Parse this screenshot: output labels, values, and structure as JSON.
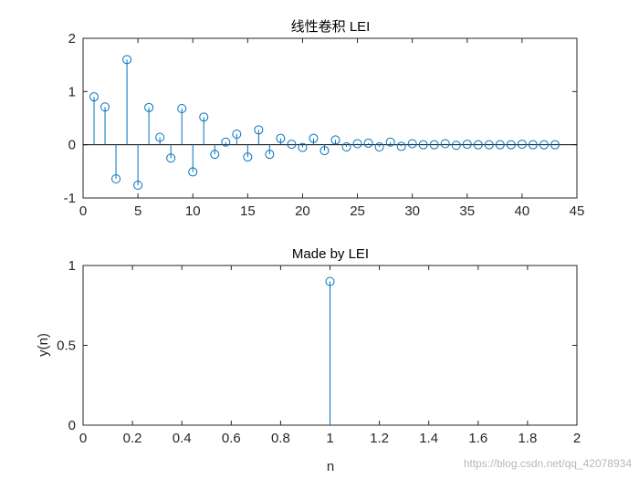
{
  "watermark": "https://blog.csdn.net/qq_42078934",
  "colors": {
    "stem": "#0072BD",
    "axis": "#262626",
    "baseline": "#000000"
  },
  "chart_data": [
    {
      "type": "stem",
      "title": "线性卷积 LEI",
      "xlabel": "",
      "ylabel": "",
      "xlim": [
        0,
        45
      ],
      "ylim": [
        -1,
        2
      ],
      "xticks": [
        0,
        5,
        10,
        15,
        20,
        25,
        30,
        35,
        40,
        45
      ],
      "yticks": [
        -1,
        0,
        1,
        2
      ],
      "xtick_labels": [
        "0",
        "5",
        "10",
        "15",
        "20",
        "25",
        "30",
        "35",
        "40",
        "45"
      ],
      "ytick_labels": [
        "-1",
        "0",
        "1",
        "2"
      ],
      "baseline": true,
      "x": [
        1,
        2,
        3,
        4,
        5,
        6,
        7,
        8,
        9,
        10,
        11,
        12,
        13,
        14,
        15,
        16,
        17,
        18,
        19,
        20,
        21,
        22,
        23,
        24,
        25,
        26,
        27,
        28,
        29,
        30,
        31,
        32,
        33,
        34,
        35,
        36,
        37,
        38,
        39,
        40,
        41,
        42,
        43
      ],
      "y": [
        0.9,
        0.71,
        -0.64,
        1.6,
        -0.76,
        0.7,
        0.14,
        -0.25,
        0.68,
        -0.51,
        0.52,
        -0.18,
        0.05,
        0.2,
        -0.23,
        0.28,
        -0.18,
        0.12,
        0.01,
        -0.05,
        0.12,
        -0.11,
        0.09,
        -0.04,
        0.02,
        0.03,
        -0.04,
        0.05,
        -0.03,
        0.02,
        0.0,
        0.0,
        0.02,
        -0.01,
        0.01,
        0.0,
        0.0,
        0.0,
        0.0,
        0.01,
        0.0,
        0.0,
        0.0
      ]
    },
    {
      "type": "stem",
      "title": "Made by LEI",
      "xlabel": "n",
      "ylabel": "y(n)",
      "xlim": [
        0,
        2
      ],
      "ylim": [
        0,
        1
      ],
      "xticks": [
        0,
        0.2,
        0.4,
        0.6,
        0.8,
        1,
        1.2,
        1.4,
        1.6,
        1.8,
        2
      ],
      "yticks": [
        0,
        0.5,
        1
      ],
      "xtick_labels": [
        "0",
        "0.2",
        "0.4",
        "0.6",
        "0.8",
        "1",
        "1.2",
        "1.4",
        "1.6",
        "1.8",
        "2"
      ],
      "ytick_labels": [
        "0",
        "0.5",
        "1"
      ],
      "baseline": false,
      "x": [
        1
      ],
      "y": [
        0.9
      ]
    }
  ]
}
